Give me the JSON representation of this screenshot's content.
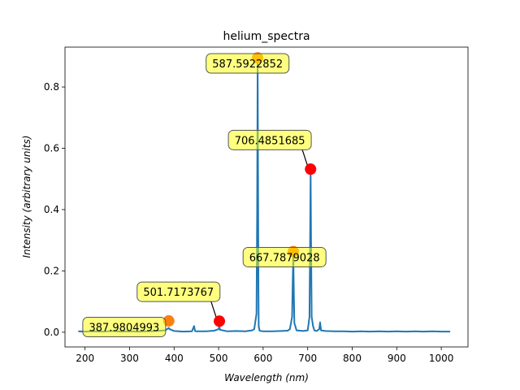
{
  "chart_data": {
    "type": "line",
    "title": "helium_spectra",
    "xlabel": "Wavelength (nm)",
    "ylabel": "Intensity (arbitrary units)",
    "xlim": [
      155,
      1060
    ],
    "ylim": [
      -0.048,
      0.93
    ],
    "xticks": [
      200,
      300,
      400,
      500,
      600,
      700,
      800,
      900,
      1000
    ],
    "yticks": [
      0.0,
      0.2,
      0.4,
      0.6,
      0.8
    ],
    "ytick_labels": [
      "0.0",
      "0.2",
      "0.4",
      "0.6",
      "0.8"
    ],
    "grid": false,
    "series": [
      {
        "color": "#1f77b4",
        "x": [
          185,
          200,
          220,
          240,
          260,
          280,
          300,
          320,
          340,
          360,
          380,
          386,
          388,
          390,
          400,
          420,
          440,
          445,
          447,
          450,
          470,
          490,
          500,
          501.7,
          503,
          520,
          540,
          560,
          575,
          580,
          585,
          586.5,
          587.6,
          588.5,
          589.5,
          590,
          592,
          600,
          620,
          640,
          655,
          660,
          665,
          666.5,
          667.8,
          669,
          670,
          675,
          690,
          700,
          704,
          705.5,
          706.5,
          707.5,
          709,
          712,
          715,
          720,
          726,
          728,
          730,
          740,
          760,
          780,
          800,
          820,
          840,
          860,
          880,
          900,
          920,
          940,
          960,
          980,
          1000,
          1020
        ],
        "y": [
          0.003,
          0.002,
          0.003,
          0.002,
          0.004,
          0.002,
          0.003,
          0.002,
          0.003,
          0.004,
          0.006,
          0.012,
          0.014,
          0.01,
          0.004,
          0.002,
          0.003,
          0.02,
          0.004,
          0.003,
          0.003,
          0.005,
          0.01,
          0.02,
          0.008,
          0.003,
          0.004,
          0.003,
          0.006,
          0.01,
          0.06,
          0.4,
          0.875,
          0.5,
          0.13,
          0.02,
          0.005,
          0.003,
          0.003,
          0.004,
          0.005,
          0.01,
          0.05,
          0.17,
          0.252,
          0.12,
          0.03,
          0.006,
          0.004,
          0.006,
          0.05,
          0.3,
          0.525,
          0.31,
          0.05,
          0.02,
          0.006,
          0.004,
          0.01,
          0.032,
          0.006,
          0.004,
          0.003,
          0.003,
          0.002,
          0.003,
          0.002,
          0.003,
          0.002,
          0.003,
          0.002,
          0.003,
          0.002,
          0.003,
          0.002,
          0.002
        ]
      }
    ],
    "annotations": [
      {
        "label": "387.9804993",
        "x": 387.98,
        "y": 0.037,
        "marker_color": "#ff7f0e",
        "has_arrow": false,
        "text_x": 288,
        "text_y": 0.017
      },
      {
        "label": "501.7173767",
        "x": 501.72,
        "y": 0.036,
        "marker_color": "#ff0000",
        "has_arrow": true,
        "text_x": 410,
        "text_y": 0.132
      },
      {
        "label": "587.5922852",
        "x": 587.59,
        "y": 0.895,
        "marker_color": "#ff7f0e",
        "has_arrow": false,
        "text_x": 565,
        "text_y": 0.877
      },
      {
        "label": "667.7879028",
        "x": 667.79,
        "y": 0.263,
        "marker_color": "#ff7f0e",
        "has_arrow": false,
        "text_x": 648,
        "text_y": 0.245
      },
      {
        "label": "706.4851685",
        "x": 706.49,
        "y": 0.532,
        "marker_color": "#ff0000",
        "has_arrow": true,
        "text_x": 615,
        "text_y": 0.627
      }
    ]
  }
}
